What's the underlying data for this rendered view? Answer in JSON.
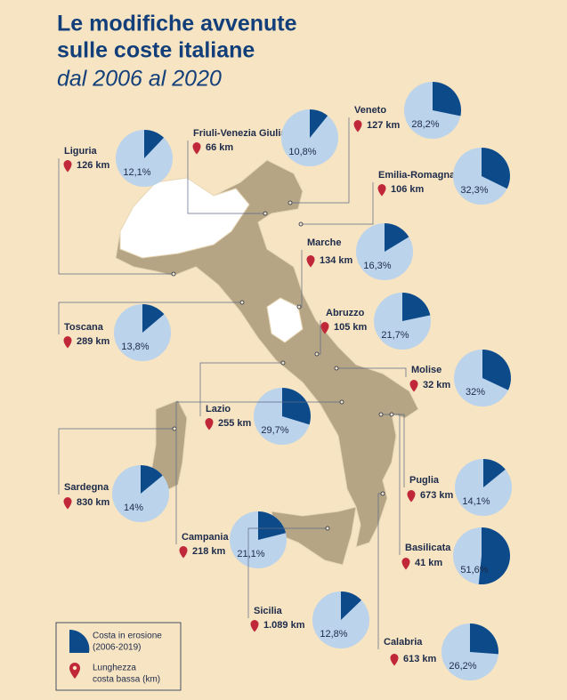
{
  "title": [
    "Le modifiche avvenute",
    "sulle coste italiane"
  ],
  "subtitle": "dal 2006 al 2020",
  "regions": [
    {
      "name": "Liguria",
      "length": "126 km",
      "erosion": 12.1,
      "erosion_label": "12,1%"
    },
    {
      "name": "Friuli-Venezia Giulia",
      "length": "66 km",
      "erosion": 10.8,
      "erosion_label": "10,8%"
    },
    {
      "name": "Veneto",
      "length": "127 km",
      "erosion": 28.2,
      "erosion_label": "28,2%"
    },
    {
      "name": "Emilia-Romagna",
      "length": "106 km",
      "erosion": 32.3,
      "erosion_label": "32,3%"
    },
    {
      "name": "Marche",
      "length": "134 km",
      "erosion": 16.3,
      "erosion_label": "16,3%"
    },
    {
      "name": "Abruzzo",
      "length": "105 km",
      "erosion": 21.7,
      "erosion_label": "21,7%"
    },
    {
      "name": "Toscana",
      "length": "289 km",
      "erosion": 13.8,
      "erosion_label": "13,8%"
    },
    {
      "name": "Molise",
      "length": "32 km",
      "erosion": 32,
      "erosion_label": "32%"
    },
    {
      "name": "Lazio",
      "length": "255 km",
      "erosion": 29.7,
      "erosion_label": "29,7%"
    },
    {
      "name": "Sardegna",
      "length": "830 km",
      "erosion": 14,
      "erosion_label": "14%"
    },
    {
      "name": "Puglia",
      "length": "673 km",
      "erosion": 14.1,
      "erosion_label": "14,1%"
    },
    {
      "name": "Campania",
      "length": "218 km",
      "erosion": 21.1,
      "erosion_label": "21,1%"
    },
    {
      "name": "Basilicata",
      "length": "41 km",
      "erosion": 51.6,
      "erosion_label": "51,6%"
    },
    {
      "name": "Sicilia",
      "length": "1.089 km",
      "erosion": 12.8,
      "erosion_label": "12,8%"
    },
    {
      "name": "Calabria",
      "length": "613 km",
      "erosion": 26.2,
      "erosion_label": "26,2%"
    }
  ],
  "legend": {
    "erosion": [
      "Costa in erosione",
      "(2006-2019)"
    ],
    "length": [
      "Lunghezza",
      "costa bassa (km)"
    ]
  }
}
